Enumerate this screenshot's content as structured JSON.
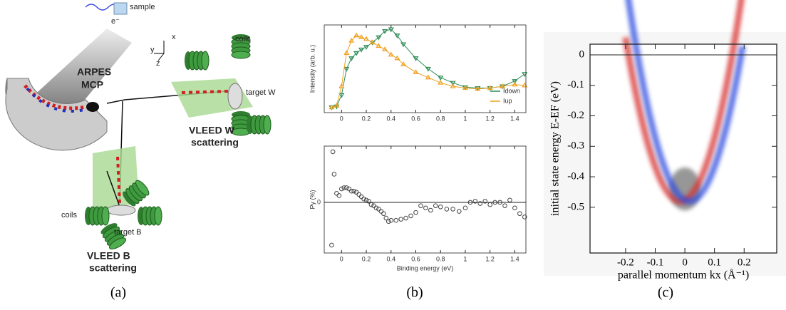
{
  "diagram": {
    "sample": "sample",
    "electron": "e⁻",
    "arpes": "ARPES",
    "mcp": "MCP",
    "coils_w": "coils",
    "target_w": "target W",
    "vleed_w": [
      "VLEED W",
      "scattering"
    ],
    "coils_b": "coils",
    "target_b": "target B",
    "vleed_b": [
      "VLEED B",
      "scattering"
    ],
    "axes": [
      "x",
      "y",
      "z"
    ]
  },
  "captions": [
    "(a)",
    "(b)",
    "(c)"
  ],
  "chart_data": [
    {
      "type": "line",
      "ylabel": "Intensity (arb. u.)",
      "x": [
        -0.08,
        -0.04,
        0,
        0.04,
        0.08,
        0.12,
        0.16,
        0.2,
        0.25,
        0.3,
        0.35,
        0.4,
        0.45,
        0.5,
        0.6,
        0.7,
        0.8,
        0.9,
        1.0,
        1.1,
        1.2,
        1.3,
        1.4,
        1.48
      ],
      "series": [
        {
          "name": "Idown",
          "color": "#2e8b57",
          "marker": "down",
          "values": [
            0.06,
            0.07,
            0.2,
            0.5,
            0.62,
            0.68,
            0.72,
            0.75,
            0.8,
            0.86,
            0.93,
            0.95,
            0.88,
            0.78,
            0.62,
            0.5,
            0.4,
            0.34,
            0.29,
            0.28,
            0.28,
            0.3,
            0.36,
            0.44
          ]
        },
        {
          "name": "Iup",
          "color": "#f0a020",
          "marker": "up",
          "values": [
            0.06,
            0.08,
            0.3,
            0.68,
            0.82,
            0.88,
            0.86,
            0.84,
            0.8,
            0.76,
            0.72,
            0.66,
            0.62,
            0.55,
            0.46,
            0.4,
            0.34,
            0.3,
            0.28,
            0.27,
            0.28,
            0.3,
            0.32,
            0.31
          ]
        }
      ],
      "xlim": [
        -0.14,
        1.49
      ],
      "xticks": [
        0,
        0.2,
        0.4,
        0.6,
        0.8,
        1,
        1.2,
        1.4
      ],
      "ylim": [
        0,
        1
      ],
      "legend": "lower right"
    },
    {
      "type": "scatter",
      "xlabel": "Binding energy (eV)",
      "ylabel": "Py (%)",
      "x": [
        -0.08,
        -0.07,
        -0.06,
        -0.04,
        -0.02,
        0,
        0.02,
        0.04,
        0.06,
        0.08,
        0.1,
        0.12,
        0.14,
        0.16,
        0.18,
        0.2,
        0.22,
        0.24,
        0.26,
        0.28,
        0.3,
        0.32,
        0.34,
        0.36,
        0.38,
        0.4,
        0.44,
        0.48,
        0.52,
        0.56,
        0.6,
        0.64,
        0.68,
        0.72,
        0.76,
        0.8,
        0.85,
        0.9,
        0.95,
        1.0,
        1.04,
        1.08,
        1.12,
        1.16,
        1.2,
        1.24,
        1.28,
        1.32,
        1.36,
        1.4,
        1.44,
        1.48
      ],
      "values": [
        -38,
        45,
        25,
        8,
        6,
        12,
        13,
        13,
        12,
        10,
        10,
        9,
        7,
        5,
        3,
        2,
        1,
        -2,
        -3,
        -5,
        -6,
        -8,
        -10,
        -14,
        -17,
        -16,
        -16,
        -15,
        -14,
        -12,
        -9,
        -3,
        -5,
        -7,
        -3,
        -4,
        -6,
        -6,
        -8,
        -5,
        0,
        1,
        -1,
        1,
        -2,
        0,
        0,
        -3,
        2,
        -5,
        -10,
        -13
      ],
      "color": "#444444",
      "xlim": [
        -0.14,
        1.49
      ],
      "xticks": [
        0,
        0.2,
        0.4,
        0.6,
        0.8,
        1,
        1.2,
        1.4
      ],
      "ylim": [
        -45,
        50
      ],
      "yticks": [
        0
      ],
      "zero_line": true
    },
    {
      "type": "image",
      "xlabel": "parallel momentum kx (Å⁻¹)",
      "ylabel": "initial state energy E-EF (eV)",
      "xlim": [
        -0.32,
        0.31
      ],
      "xticks": [
        -0.2,
        -0.1,
        0,
        0.1,
        0.2
      ],
      "ylim": [
        -0.65,
        0.035
      ],
      "yticks": [
        0,
        -0.1,
        -0.2,
        -0.3,
        -0.4,
        -0.5
      ],
      "zero_line": true,
      "colors": [
        "#d83030",
        "#3050e0"
      ]
    }
  ]
}
